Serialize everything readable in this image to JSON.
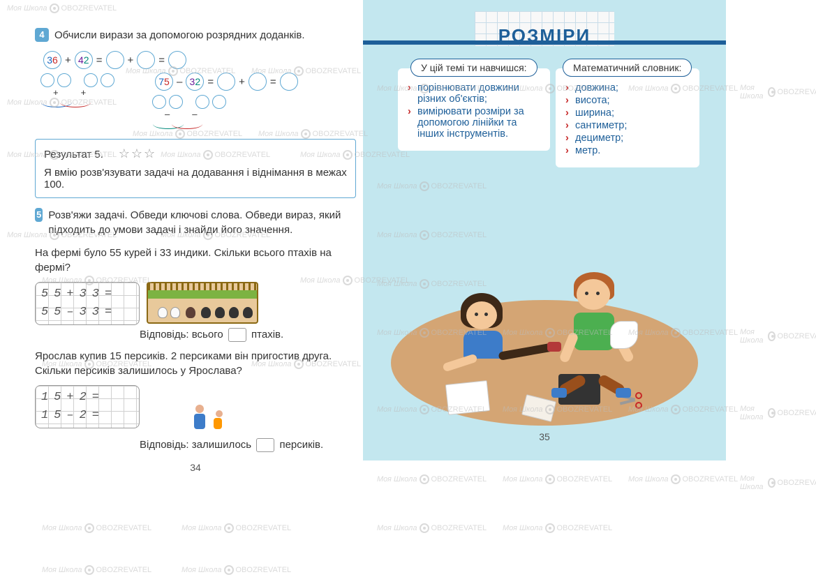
{
  "watermark": {
    "text1": "Моя Школа",
    "text2": "OBOZREVATEL"
  },
  "left": {
    "task4": {
      "num": "4",
      "text": "Обчисли вирази за допомогою розрядних доданків.",
      "expr1": {
        "a_tens": "3",
        "a_units": "6",
        "b_tens": "4",
        "b_units": "2",
        "op": "+"
      },
      "expr2": {
        "a_tens": "7",
        "a_units": "5",
        "b_tens": "3",
        "b_units": "2",
        "op": "–"
      }
    },
    "result_box": {
      "label": "Результат 5.",
      "skill": "Я вмію розв'язувати задачі на додавання і віднімання в межах 100."
    },
    "task5": {
      "num": "5",
      "text": "Розв'яжи задачі. Обведи ключові слова. Обведи вираз, який підходить до умови задачі і знайди його значення."
    },
    "problem1": {
      "text": "На фермі було 55 курей і 33 индики. Скільки всього птахів на фермі?",
      "eq1": "55+33=",
      "eq2": "55–33=",
      "answer_prefix": "Відповідь: всього",
      "answer_suffix": "птахів."
    },
    "problem2": {
      "text": "Ярослав купив 15 персиків. 2 персиками він пригостив друга. Скільки персиків залишилось у Ярослава?",
      "eq1": "15+2=",
      "eq2": "15–2=",
      "answer_prefix": "Відповідь: залишилось",
      "answer_suffix": "персиків."
    },
    "page_num": "34"
  },
  "right": {
    "title": "РОЗМІРИ",
    "tab_left": "У цій темі ти навчишся:",
    "tab_right": "Математичний словник:",
    "learn_items": [
      "порівнювати довжини різних об'єктів;",
      "вимірювати розміри за допомогою лінійки та інших інструментів."
    ],
    "dict_items": [
      "довжина;",
      "висота;",
      "ширина;",
      "сантиметр;",
      "дециметр;",
      "метр."
    ],
    "page_num": "35"
  },
  "colors": {
    "accent_blue": "#1e5f99",
    "page_bg_right": "#c3e7ef",
    "task_badge": "#5fa8d3",
    "red": "#c62828",
    "floor": "#d4a574"
  }
}
